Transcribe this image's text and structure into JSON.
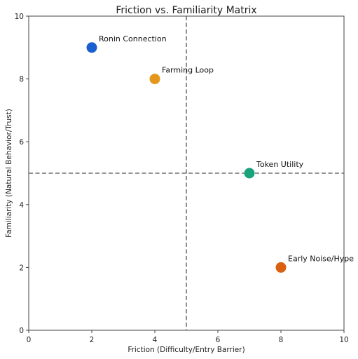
{
  "chart_data": {
    "type": "scatter",
    "title": "Friction vs. Familiarity Matrix",
    "xlabel": "Friction (Difficulty/Entry Barrier)",
    "ylabel": "Familiarity (Natural Behavior/Trust)",
    "xlim": [
      0,
      10
    ],
    "ylim": [
      0,
      10
    ],
    "xticks": [
      "0",
      "2",
      "4",
      "6",
      "8",
      "10"
    ],
    "yticks": [
      "0",
      "2",
      "4",
      "6",
      "8",
      "10"
    ],
    "grid": false,
    "reference_lines": {
      "x": 5,
      "y": 5,
      "style": "dashed",
      "color": "#555555"
    },
    "points": [
      {
        "label": "Ronin Connection",
        "x": 2,
        "y": 9,
        "color": "#1a5fcf"
      },
      {
        "label": "Farming Loop",
        "x": 4,
        "y": 8,
        "color": "#e3981c"
      },
      {
        "label": "Token Utility",
        "x": 7,
        "y": 5,
        "color": "#17a37c"
      },
      {
        "label": "Early Noise/Hype",
        "x": 8,
        "y": 2,
        "color": "#d9600f"
      }
    ]
  }
}
